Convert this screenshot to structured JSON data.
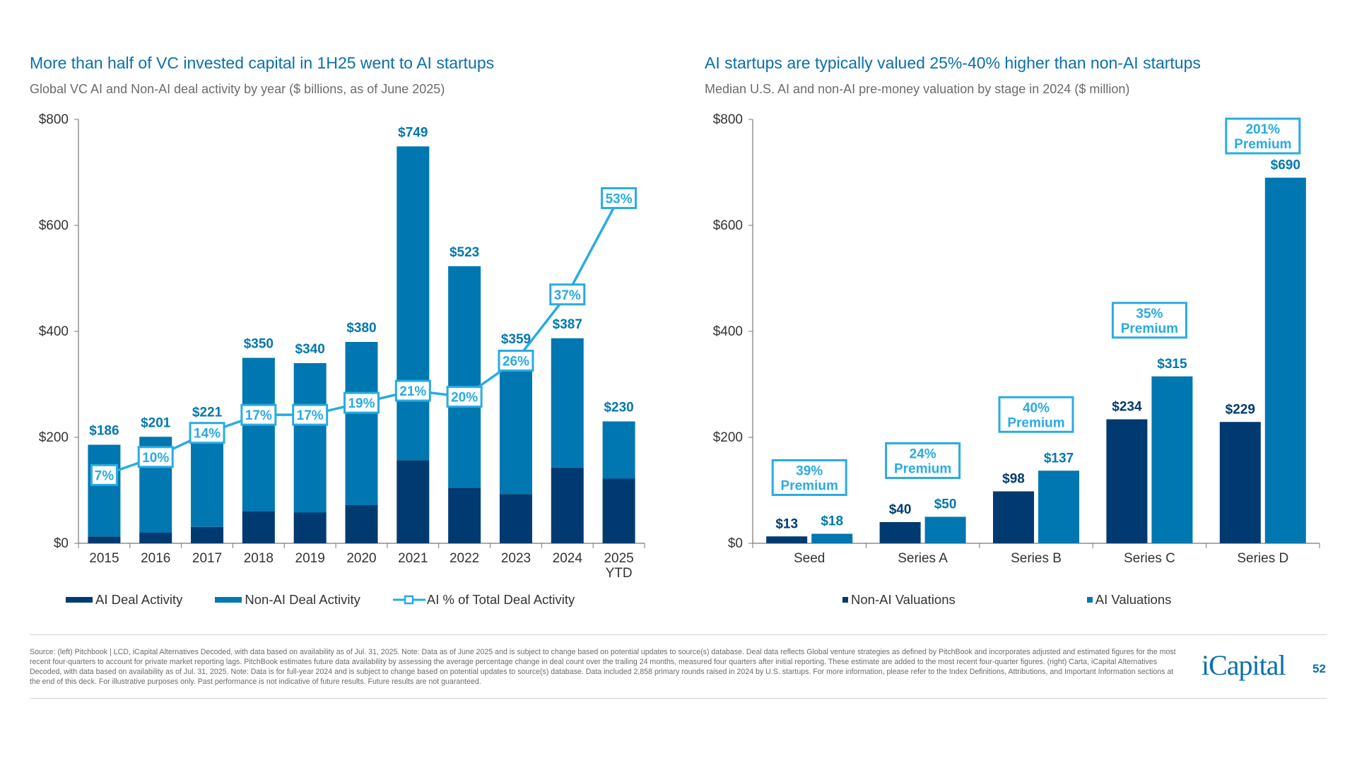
{
  "colors": {
    "ai": "#003a70",
    "non_ai": "#0077b0",
    "line": "#29abe2",
    "title": "#0a6fae"
  },
  "left": {
    "title": "More than half of VC invested capital in 1H25 went to AI startups",
    "subtitle": "Global VC AI and Non-AI deal activity by year ($ billions, as of June 2025)"
  },
  "right": {
    "title": "AI startups are typically valued 25%-40% higher than non-AI startups",
    "subtitle": "Median U.S. AI and non-AI pre-money valuation by stage in 2024 ($ million)"
  },
  "chart_data": [
    {
      "type": "bar",
      "stacked": true,
      "categories": [
        "2015",
        "2016",
        "2017",
        "2018",
        "2019",
        "2020",
        "2021",
        "2022",
        "2023",
        "2024",
        "2025 YTD"
      ],
      "totals": [
        186,
        201,
        221,
        350,
        340,
        380,
        749,
        523,
        359,
        387,
        230
      ],
      "total_labels": [
        "$186",
        "$201",
        "$221",
        "$350",
        "$340",
        "$380",
        "$749",
        "$523",
        "$359",
        "$387",
        "$230"
      ],
      "series": [
        {
          "name": "AI Deal Activity",
          "values": [
            13,
            20,
            31,
            60,
            58,
            72,
            157,
            105,
            93,
            143,
            122
          ]
        },
        {
          "name": "Non-AI Deal Activity",
          "values": [
            173,
            181,
            190,
            290,
            282,
            308,
            592,
            418,
            266,
            244,
            108
          ]
        },
        {
          "name": "AI % of Total Deal Activity",
          "type": "line",
          "values": [
            7,
            10,
            14,
            17,
            17,
            19,
            21,
            20,
            26,
            37,
            53
          ],
          "labels": [
            "7%",
            "10%",
            "14%",
            "17%",
            "17%",
            "19%",
            "21%",
            "20%",
            "26%",
            "37%",
            "53%"
          ]
        }
      ],
      "ylim": [
        0,
        800
      ],
      "yticks": [
        "$0",
        "$200",
        "$400",
        "$600",
        "$800"
      ],
      "legend": "bottom"
    },
    {
      "type": "bar",
      "categories": [
        "Seed",
        "Series A",
        "Series B",
        "Series C",
        "Series D"
      ],
      "series": [
        {
          "name": "Non-AI Valuations",
          "values": [
            13,
            40,
            98,
            234,
            229
          ],
          "labels": [
            "$13",
            "$40",
            "$98",
            "$234",
            "$229"
          ]
        },
        {
          "name": "AI Valuations",
          "values": [
            18,
            50,
            137,
            315,
            690
          ],
          "labels": [
            "$18",
            "$50",
            "$137",
            "$315",
            "$690"
          ]
        }
      ],
      "annotations": [
        [
          "39%",
          "Premium"
        ],
        [
          "24%",
          "Premium"
        ],
        [
          "40%",
          "Premium"
        ],
        [
          "35%",
          "Premium"
        ],
        [
          "201%",
          "Premium"
        ]
      ],
      "ylim": [
        0,
        800
      ],
      "yticks": [
        "$0",
        "$200",
        "$400",
        "$600",
        "$800"
      ],
      "legend": "bottom"
    }
  ],
  "footer": {
    "source": "Source: (left) Pitchbook | LCD, iCapital Alternatives Decoded, with data based on availability as of Jul. 31, 2025. Note: Data as of June 2025 and is subject to change based on potential updates to source(s) database. Deal data reflects Global venture strategies as defined by PitchBook and incorporates adjusted and estimated figures for the most recent four-quarters to account for private market reporting lags. PitchBook estimates future data availability by assessing the average percentage change in deal count over the trailing 24 months, measured four quarters after initial reporting. These estimate are added to the most recent four-quarter figures. (right) Carta, iCapital Alternatives Decoded, with data based on availability as of Jul. 31, 2025. Note: Data is for full-year 2024 and is subject to change based on potential updates to source(s) database. Data included 2,858 primary rounds raised in 2024 by U.S. startups. For more information, please refer to the Index Definitions, Attributions, and Important Information sections at the end of this deck. For illustrative purposes only. Past performance is not indicative of future results. Future results are not guaranteed.",
    "logo": "iCapital",
    "page": "52"
  }
}
